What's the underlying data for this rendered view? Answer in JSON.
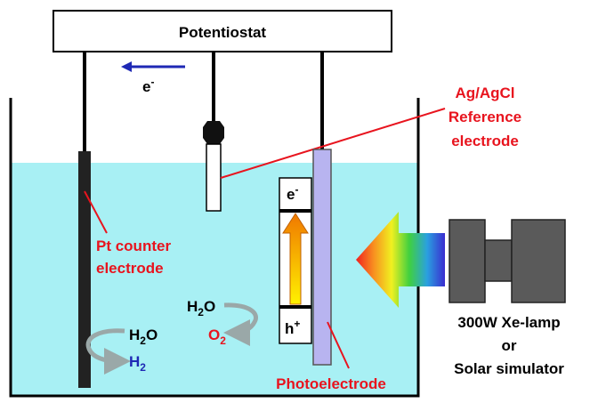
{
  "potentiostat": "Potentiostat",
  "electron_flow": {
    "symbol": "e",
    "charge": "-"
  },
  "reference_electrode": {
    "lines": [
      "Ag/AgCl",
      "Reference",
      "electrode"
    ]
  },
  "counter_electrode": {
    "lines": [
      "Pt counter",
      "electrode"
    ]
  },
  "photoelectrode": {
    "label": "Photoelectrode",
    "electron": {
      "symbol": "e",
      "charge": "-"
    },
    "hole": {
      "symbol": "h",
      "charge": "+"
    }
  },
  "counter_reaction": {
    "reactant": {
      "base": "H",
      "sub": "2",
      "tail": "O"
    },
    "product": {
      "base": "H",
      "sub": "2"
    }
  },
  "photo_reaction": {
    "reactant": {
      "base": "H",
      "sub": "2",
      "tail": "O"
    },
    "product": {
      "base": "O",
      "sub": "2"
    }
  },
  "light_source": {
    "lines": [
      "300W Xe-lamp",
      "or",
      "Solar simulator"
    ]
  }
}
